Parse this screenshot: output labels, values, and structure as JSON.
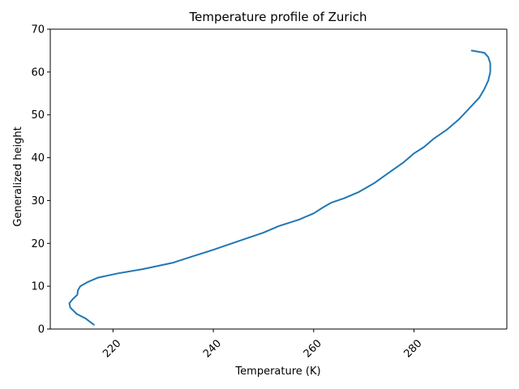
{
  "chart_data": {
    "type": "line",
    "title": "Temperature profile of Zurich",
    "xlabel": "Temperature (K)",
    "ylabel": "Generalized height",
    "xlim": [
      207.5,
      298.5
    ],
    "ylim": [
      0,
      70
    ],
    "xticks": [
      220,
      240,
      260,
      280
    ],
    "yticks": [
      0,
      10,
      20,
      30,
      40,
      50,
      60,
      70
    ],
    "xtick_rotation": 45,
    "grid": false,
    "line_color": "#1f77b4",
    "series": [
      {
        "x": [
          216.2,
          214.5,
          212.8,
          211.5,
          211.3,
          212.0,
          212.9,
          213.0,
          213.5,
          215.0,
          217.0,
          221.0,
          226.0,
          232.0,
          236.0,
          240.0,
          245.0,
          250.0,
          253.0,
          257.0,
          260.0,
          262.0,
          263.5,
          266.0,
          269.0,
          272.0,
          275.0,
          278.0,
          280.0,
          282.0,
          284.0,
          286.5,
          289.0,
          291.0,
          293.0,
          294.0,
          294.8,
          295.2,
          295.2,
          294.8,
          294.0,
          291.5
        ],
        "y": [
          1,
          2.5,
          3.5,
          5,
          6,
          7,
          8,
          9,
          10,
          11,
          12,
          13,
          14,
          15.5,
          17,
          18.5,
          20.5,
          22.5,
          24,
          25.5,
          27,
          28.5,
          29.5,
          30.5,
          32,
          34,
          36.5,
          39,
          41,
          42.5,
          44.5,
          46.5,
          49,
          51.5,
          54,
          56,
          58,
          60,
          62,
          63.5,
          64.5,
          65
        ]
      }
    ]
  }
}
